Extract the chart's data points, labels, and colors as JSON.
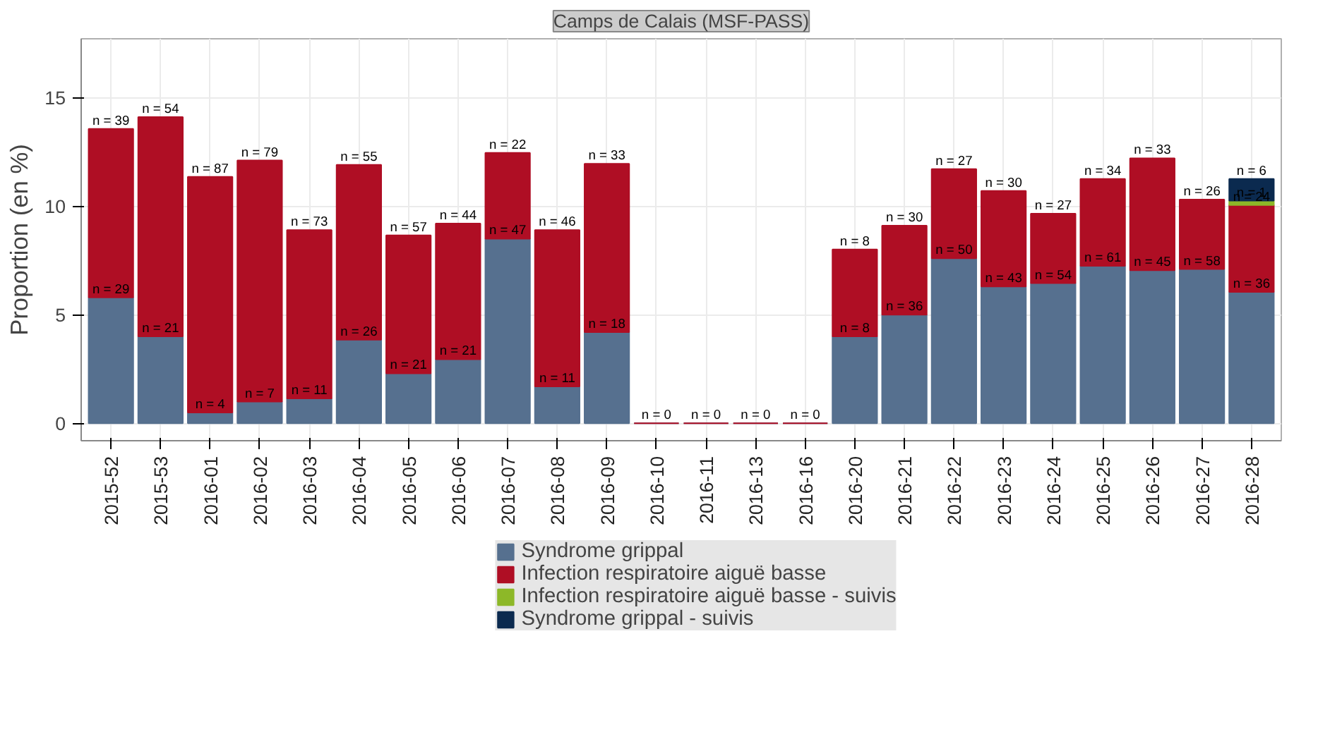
{
  "chart_data": {
    "type": "bar",
    "stacked": true,
    "title": "Camps de Calais (MSF-PASS)",
    "ylabel": "Proportion (en %)",
    "categories": [
      "2015-52",
      "2015-53",
      "2016-01",
      "2016-02",
      "2016-03",
      "2016-04",
      "2016-05",
      "2016-06",
      "2016-07",
      "2016-08",
      "2016-09",
      "2016-10",
      "2016-11",
      "2016-13",
      "2016-16",
      "2016-20",
      "2016-21",
      "2016-22",
      "2016-23",
      "2016-24",
      "2016-25",
      "2016-26",
      "2016-27",
      "2016-28"
    ],
    "series": [
      {
        "name": "Syndrome grippal",
        "color": "#56708f",
        "values": [
          5.8,
          4.0,
          0.5,
          1.0,
          1.15,
          3.85,
          2.3,
          2.95,
          8.5,
          1.7,
          4.2,
          0,
          0,
          0,
          0,
          4.0,
          5.0,
          7.6,
          6.3,
          6.45,
          7.25,
          7.05,
          7.1,
          6.05
        ]
      },
      {
        "name": "Infection respiratoire aiguë basse",
        "color": "#af0e24",
        "values": [
          7.75,
          10.1,
          10.85,
          11.1,
          7.75,
          8.05,
          6.35,
          6.25,
          3.95,
          7.2,
          7.75,
          0,
          0,
          0,
          0,
          4.0,
          4.1,
          4.1,
          4.4,
          3.2,
          4.0,
          5.15,
          3.2,
          4.0
        ]
      },
      {
        "name": "Infection respiratoire aiguë basse - suivis",
        "color": "#8db828",
        "values": [
          null,
          null,
          null,
          null,
          null,
          null,
          null,
          null,
          null,
          null,
          null,
          null,
          null,
          null,
          null,
          null,
          null,
          null,
          null,
          null,
          null,
          null,
          null,
          0.2
        ]
      },
      {
        "name": "Syndrome grippal - suivis",
        "color": "#0b2a4f",
        "values": [
          null,
          null,
          null,
          null,
          null,
          null,
          null,
          null,
          null,
          null,
          null,
          null,
          null,
          null,
          null,
          null,
          null,
          null,
          null,
          null,
          null,
          null,
          null,
          1.0
        ]
      }
    ],
    "annotations": [
      {
        "text": "n = 29",
        "x": "2015-52",
        "y": 5.8
      },
      {
        "text": "n = 39",
        "x": "2015-52",
        "y": 13.55
      },
      {
        "text": "n = 21",
        "x": "2015-53",
        "y": 4.0
      },
      {
        "text": "n = 54",
        "x": "2015-53",
        "y": 14.1
      },
      {
        "text": "n = 4",
        "x": "2016-01",
        "y": 0.5
      },
      {
        "text": "n = 87",
        "x": "2016-01",
        "y": 11.35
      },
      {
        "text": "n = 7",
        "x": "2016-02",
        "y": 1.0
      },
      {
        "text": "n = 79",
        "x": "2016-02",
        "y": 12.1
      },
      {
        "text": "n = 11",
        "x": "2016-03",
        "y": 1.15
      },
      {
        "text": "n = 73",
        "x": "2016-03",
        "y": 8.9
      },
      {
        "text": "n = 26",
        "x": "2016-04",
        "y": 3.85
      },
      {
        "text": "n = 55",
        "x": "2016-04",
        "y": 11.9
      },
      {
        "text": "n = 21",
        "x": "2016-05",
        "y": 2.3
      },
      {
        "text": "n = 57",
        "x": "2016-05",
        "y": 8.65
      },
      {
        "text": "n = 21",
        "x": "2016-06",
        "y": 2.95
      },
      {
        "text": "n = 44",
        "x": "2016-06",
        "y": 9.2
      },
      {
        "text": "n = 47",
        "x": "2016-07",
        "y": 8.5
      },
      {
        "text": "n = 22",
        "x": "2016-07",
        "y": 12.45
      },
      {
        "text": "n = 11",
        "x": "2016-08",
        "y": 1.7
      },
      {
        "text": "n = 46",
        "x": "2016-08",
        "y": 8.9
      },
      {
        "text": "n = 18",
        "x": "2016-09",
        "y": 4.2
      },
      {
        "text": "n = 33",
        "x": "2016-09",
        "y": 11.95
      },
      {
        "text": "n = 0",
        "x": "2016-10",
        "y": 0
      },
      {
        "text": "n = 0",
        "x": "2016-11",
        "y": 0
      },
      {
        "text": "n = 0",
        "x": "2016-13",
        "y": 0
      },
      {
        "text": "n = 0",
        "x": "2016-16",
        "y": 0
      },
      {
        "text": "n = 8",
        "x": "2016-20",
        "y": 4.0
      },
      {
        "text": "n = 8",
        "x": "2016-20",
        "y": 8.0
      },
      {
        "text": "n = 36",
        "x": "2016-21",
        "y": 5.0
      },
      {
        "text": "n = 30",
        "x": "2016-21",
        "y": 9.1
      },
      {
        "text": "n = 50",
        "x": "2016-22",
        "y": 7.6
      },
      {
        "text": "n = 27",
        "x": "2016-22",
        "y": 11.7
      },
      {
        "text": "n = 43",
        "x": "2016-23",
        "y": 6.3
      },
      {
        "text": "n = 30",
        "x": "2016-23",
        "y": 10.7
      },
      {
        "text": "n = 54",
        "x": "2016-24",
        "y": 6.45
      },
      {
        "text": "n = 27",
        "x": "2016-24",
        "y": 9.65
      },
      {
        "text": "n = 61",
        "x": "2016-25",
        "y": 7.25
      },
      {
        "text": "n = 34",
        "x": "2016-25",
        "y": 11.25
      },
      {
        "text": "n = 45",
        "x": "2016-26",
        "y": 7.05
      },
      {
        "text": "n = 33",
        "x": "2016-26",
        "y": 12.2
      },
      {
        "text": "n = 58",
        "x": "2016-27",
        "y": 7.1
      },
      {
        "text": "n = 26",
        "x": "2016-27",
        "y": 10.3
      },
      {
        "text": "n = 36",
        "x": "2016-28",
        "y": 6.05
      },
      {
        "text": "n = 24",
        "x": "2016-28",
        "y": 10.05
      },
      {
        "text": "n = 1",
        "x": "2016-28",
        "y": 10.25
      },
      {
        "text": "n = 6",
        "x": "2016-28",
        "y": 11.25
      }
    ],
    "ylim": [
      -0.8,
      17.7
    ],
    "yticks": [
      0,
      5,
      10,
      15
    ],
    "grid": true,
    "legend": "bottom"
  }
}
